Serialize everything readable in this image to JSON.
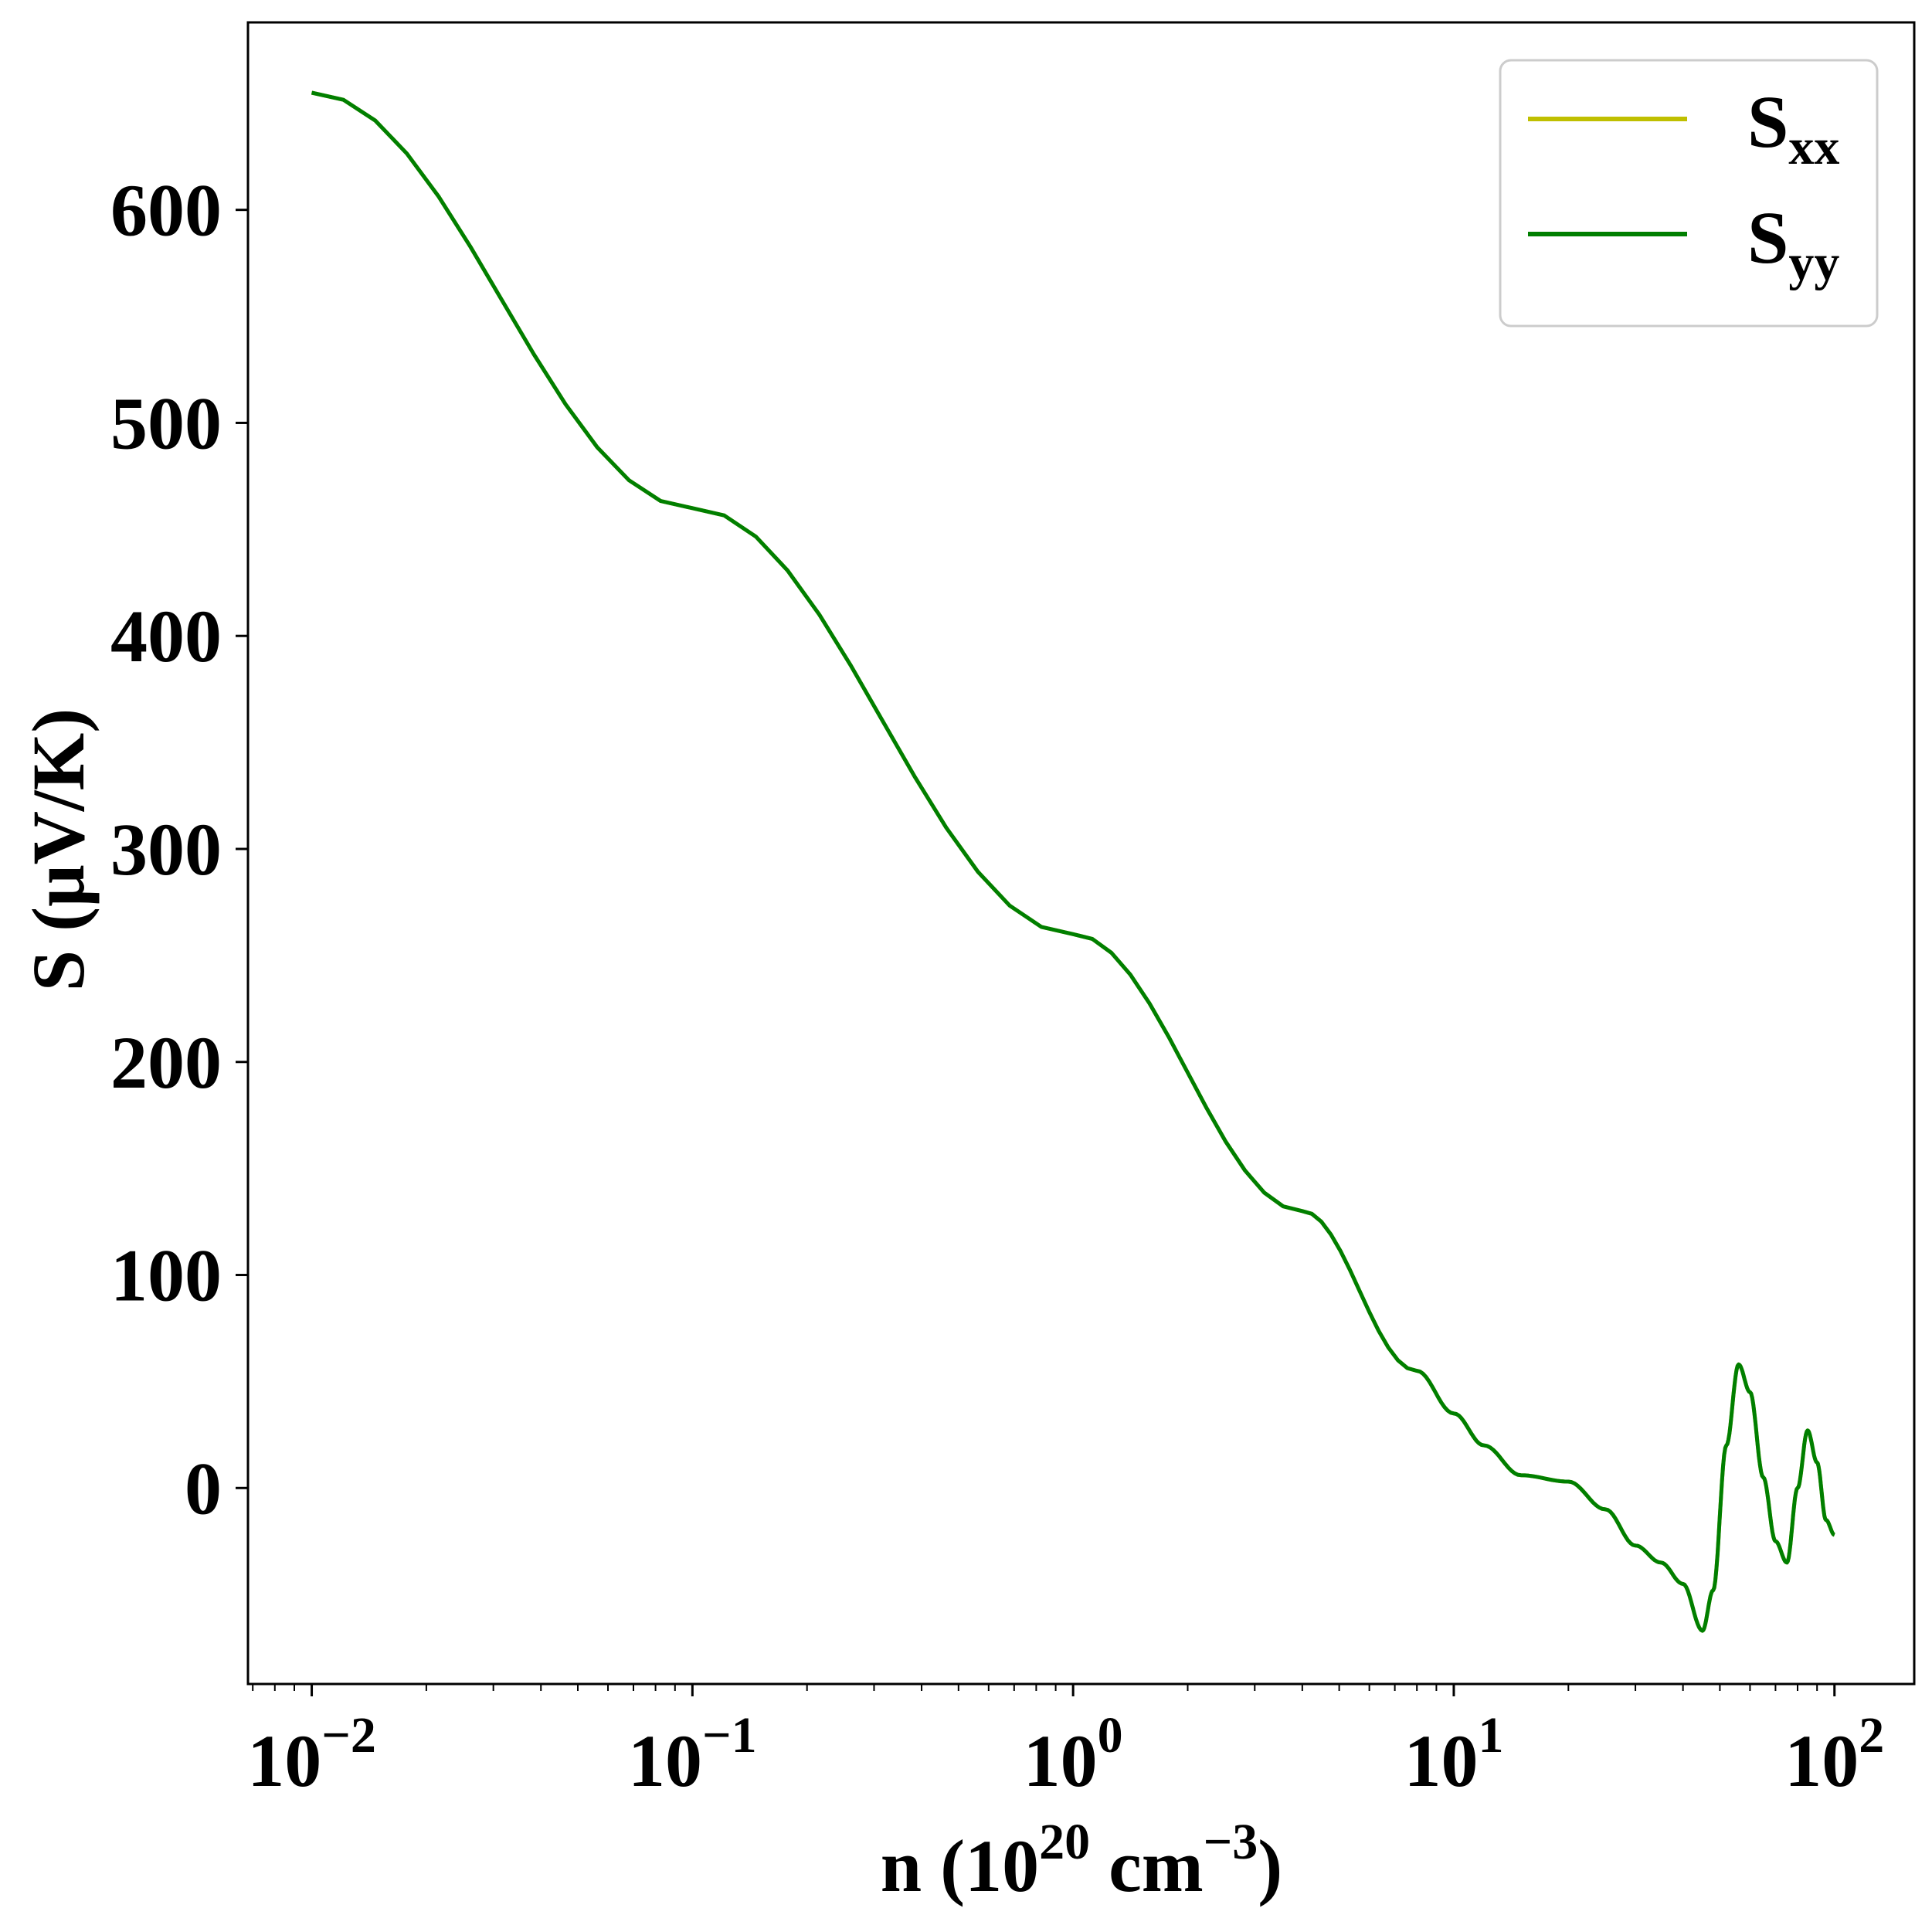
{
  "chart_data": {
    "type": "line",
    "x_scale": "log",
    "xlabel": {
      "prefix": "n (10",
      "exp1": "20",
      "mid": " cm",
      "exp2": "−3",
      "suffix": ")"
    },
    "ylabel": "S (μV/K)",
    "xlim": [
      0.0068,
      162
    ],
    "ylim": [
      -92,
      688
    ],
    "grid": false,
    "legend_position": "top-right",
    "x_ticks": [
      {
        "value": 0.01,
        "base": "10",
        "exp": "−2"
      },
      {
        "value": 0.1,
        "base": "10",
        "exp": "−1"
      },
      {
        "value": 1,
        "base": "10",
        "exp": "0"
      },
      {
        "value": 10,
        "base": "10",
        "exp": "1"
      },
      {
        "value": 100,
        "base": "10",
        "exp": "2"
      }
    ],
    "y_ticks": [
      0,
      100,
      200,
      300,
      400,
      500,
      600
    ],
    "series": [
      {
        "name": "S_xx",
        "label_main": "S",
        "label_sub": "xx",
        "color": "#bfbf00",
        "x": [
          0.01,
          0.1,
          1,
          4,
          8,
          10,
          12,
          15,
          20,
          25,
          30,
          35,
          40,
          45,
          48,
          52,
          56,
          60,
          65,
          70,
          75,
          80,
          85,
          90,
          95,
          100
        ],
        "y": [
          655,
          460,
          260,
          130,
          55,
          35,
          20,
          6,
          3,
          -10,
          -27,
          -35,
          -45,
          -67,
          -48,
          20,
          58,
          45,
          5,
          -25,
          -35,
          0,
          27,
          12,
          -15,
          -22
        ]
      },
      {
        "name": "S_yy",
        "label_main": "S",
        "label_sub": "yy",
        "color": "#007f00",
        "x": [
          0.01,
          0.1,
          1,
          4,
          8,
          10,
          12,
          15,
          20,
          25,
          30,
          35,
          40,
          45,
          48,
          52,
          56,
          60,
          65,
          70,
          75,
          80,
          85,
          90,
          95,
          100
        ],
        "y": [
          655,
          460,
          260,
          130,
          55,
          35,
          20,
          6,
          3,
          -10,
          -27,
          -35,
          -45,
          -67,
          -48,
          20,
          58,
          45,
          5,
          -25,
          -35,
          0,
          27,
          12,
          -15,
          -22
        ]
      }
    ]
  }
}
